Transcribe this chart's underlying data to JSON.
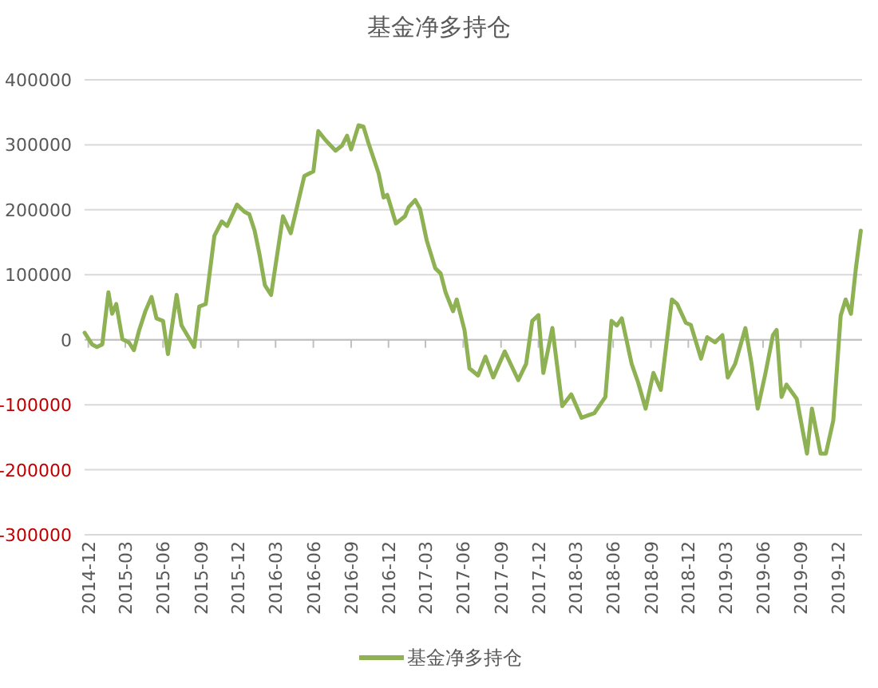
{
  "chart_data": {
    "type": "line",
    "title": "基金净多持仓",
    "x": [
      "2014-11-22",
      "2014-12-10",
      "2014-12-22",
      "2015-01-04",
      "2015-01-19",
      "2015-01-28",
      "2015-02-07",
      "2015-02-22",
      "2015-03-10",
      "2015-03-22",
      "2015-04-04",
      "2015-04-19",
      "2015-05-04",
      "2015-05-16",
      "2015-06-01",
      "2015-06-13",
      "2015-07-04",
      "2015-07-16",
      "2015-08-16",
      "2015-08-28",
      "2015-09-13",
      "2015-10-04",
      "2015-10-22",
      "2015-11-04",
      "2015-11-28",
      "2015-12-16",
      "2015-12-28",
      "2016-01-10",
      "2016-01-22",
      "2016-02-04",
      "2016-02-19",
      "2016-03-19",
      "2016-04-07",
      "2016-04-22",
      "2016-05-10",
      "2016-06-01",
      "2016-06-13",
      "2016-07-01",
      "2016-07-25",
      "2016-08-10",
      "2016-08-22",
      "2016-09-01",
      "2016-09-19",
      "2016-10-01",
      "2016-10-13",
      "2016-11-07",
      "2016-11-19",
      "2016-11-28",
      "2016-12-19",
      "2017-01-10",
      "2017-01-19",
      "2017-02-04",
      "2017-02-16",
      "2017-03-04",
      "2017-03-25",
      "2017-04-07",
      "2017-04-19",
      "2017-05-07",
      "2017-05-16",
      "2017-06-04",
      "2017-06-16",
      "2017-07-07",
      "2017-07-25",
      "2017-08-13",
      "2017-09-10",
      "2017-10-13",
      "2017-11-01",
      "2017-11-16",
      "2017-12-01",
      "2017-12-13",
      "2018-01-04",
      "2018-01-28",
      "2018-02-19",
      "2018-03-16",
      "2018-04-16",
      "2018-05-13",
      "2018-05-28",
      "2018-06-10",
      "2018-06-22",
      "2018-07-16",
      "2018-08-01",
      "2018-08-19",
      "2018-09-07",
      "2018-09-25",
      "2018-10-22",
      "2018-11-04",
      "2018-11-25",
      "2018-12-07",
      "2019-01-01",
      "2019-01-16",
      "2019-02-04",
      "2019-02-22",
      "2019-03-07",
      "2019-03-25",
      "2019-04-19",
      "2019-05-04",
      "2019-05-19",
      "2019-06-07",
      "2019-06-25",
      "2019-07-04",
      "2019-07-16",
      "2019-07-28",
      "2019-08-22",
      "2019-09-16",
      "2019-09-28",
      "2019-10-19",
      "2019-11-01",
      "2019-11-19",
      "2019-12-07",
      "2019-12-19",
      "2020-01-01",
      "2020-01-13",
      "2020-01-25"
    ],
    "series": [
      {
        "name": "基金净多持仓",
        "color": "#8db153",
        "values": [
          11000,
          -7000,
          -11000,
          -7000,
          73000,
          40000,
          55000,
          1000,
          -4000,
          -16000,
          15000,
          44000,
          66000,
          33000,
          29000,
          -22000,
          69000,
          22000,
          -11000,
          51000,
          55000,
          160000,
          182000,
          175000,
          208000,
          197000,
          193000,
          168000,
          131000,
          84000,
          69000,
          190000,
          164000,
          204000,
          252000,
          259000,
          321000,
          307000,
          291000,
          299000,
          314000,
          293000,
          330000,
          328000,
          303000,
          256000,
          219000,
          223000,
          179000,
          190000,
          204000,
          215000,
          201000,
          153000,
          110000,
          102000,
          73000,
          44000,
          62000,
          15000,
          -44000,
          -55000,
          -26000,
          -58000,
          -18000,
          -62000,
          -37000,
          29000,
          38000,
          -51000,
          18000,
          -102000,
          -84000,
          -120000,
          -113000,
          -88000,
          29000,
          22000,
          33000,
          -37000,
          -66000,
          -106000,
          -51000,
          -77000,
          62000,
          55000,
          26000,
          23000,
          -29000,
          4000,
          -4000,
          7000,
          -58000,
          -37000,
          18000,
          -37000,
          -106000,
          -51000,
          7000,
          15000,
          -88000,
          -69000,
          -91000,
          -175000,
          -106000,
          -175000,
          -175000,
          -124000,
          37000,
          62000,
          40000,
          110000,
          168000
        ]
      }
    ],
    "xlim": [
      "2014-11-22",
      "2020-01-28"
    ],
    "xticks": [
      "2014-12",
      "2015-03",
      "2015-06",
      "2015-09",
      "2015-12",
      "2016-03",
      "2016-06",
      "2016-09",
      "2016-12",
      "2017-03",
      "2017-06",
      "2017-09",
      "2017-12",
      "2018-03",
      "2018-06",
      "2018-09",
      "2018-12",
      "2019-03",
      "2019-06",
      "2019-09",
      "2019-12"
    ],
    "ylim": [
      -300000,
      400000
    ],
    "yticks": [
      -300000,
      -200000,
      -100000,
      0,
      100000,
      200000,
      300000,
      400000
    ],
    "grid": "y",
    "legend": "bottom",
    "marker": "none",
    "line_style": "solid"
  }
}
